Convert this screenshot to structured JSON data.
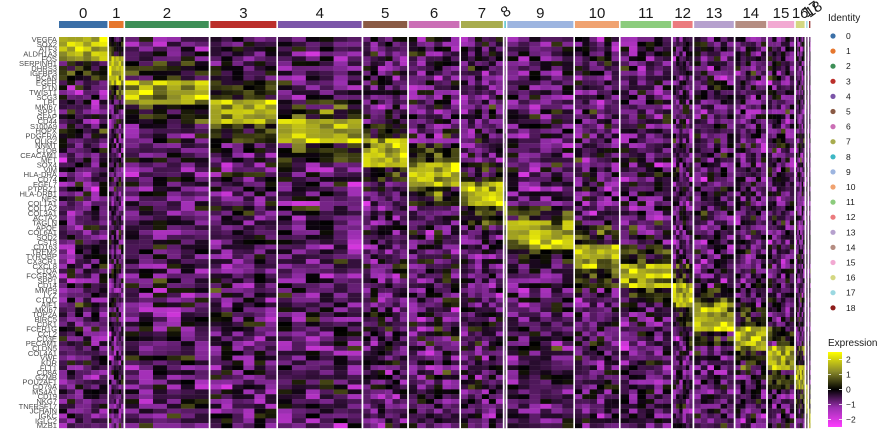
{
  "chart_data": {
    "type": "heatmap",
    "title": "",
    "clusters": [
      {
        "id": "0",
        "color": "#3B6FA7",
        "cells": 110
      },
      {
        "id": "1",
        "color": "#E6772E",
        "cells": 33
      },
      {
        "id": "2",
        "color": "#3E8F57",
        "cells": 190
      },
      {
        "id": "3",
        "color": "#BB2F2A",
        "cells": 150
      },
      {
        "id": "4",
        "color": "#7B55A8",
        "cells": 190
      },
      {
        "id": "5",
        "color": "#8A5A44",
        "cells": 100
      },
      {
        "id": "6",
        "color": "#CB6FB5",
        "cells": 115
      },
      {
        "id": "7",
        "color": "#A8AC4E",
        "cells": 95
      },
      {
        "id": "8",
        "color": "#3EB7C4",
        "cells": 3
      },
      {
        "id": "9",
        "color": "#9DB5E0",
        "cells": 150
      },
      {
        "id": "10",
        "color": "#F0A270",
        "cells": 100
      },
      {
        "id": "11",
        "color": "#8CCC7D",
        "cells": 115
      },
      {
        "id": "12",
        "color": "#EB7B7E",
        "cells": 45
      },
      {
        "id": "13",
        "color": "#B6A1CE",
        "cells": 90
      },
      {
        "id": "14",
        "color": "#B58D82",
        "cells": 70
      },
      {
        "id": "15",
        "color": "#F2A9D2",
        "cells": 60
      },
      {
        "id": "16",
        "color": "#D4D782",
        "cells": 20
      },
      {
        "id": "17",
        "color": "#9BD8E1",
        "cells": 3
      },
      {
        "id": "18",
        "color": "#8E1D1B",
        "cells": 2
      }
    ],
    "genes": [
      "VEGFA",
      "SOX2",
      "ATF3",
      "ALDH1A3",
      "FOS",
      "SERPINH1",
      "DHRS3",
      "IGFBP3",
      "BCAN",
      "EGFR",
      "PTN",
      "TWIST1",
      "SCG3",
      "LPL",
      "MKI67",
      "SPP1",
      "GFAP",
      "CD44",
      "S100A9",
      "HOPX",
      "PDGFRA",
      "OLIG2",
      "NNMT",
      "C1QB",
      "CEACAM1",
      "MET",
      "SOX4",
      "VIM",
      "HLA-DRA",
      "CD74",
      "EGFL7",
      "PTPRZ1",
      "HLA-DRB1",
      "NES",
      "COL1A1",
      "COL1A2",
      "COL3A1",
      "ACTA2",
      "TAGLN",
      "APOE",
      "COL6A1",
      "SOD2",
      "CST3",
      "CD163",
      "TREM2",
      "TYROBP",
      "CX3CR1",
      "CXCL8",
      "C1QA",
      "FCGR3A",
      "SPP1",
      "CD14",
      "MMP9",
      "LYZ",
      "C1QC",
      "AIF1",
      "MKI67",
      "TOP2A",
      "BIRC5",
      "CDK1",
      "FCER1G",
      "CCL2",
      "CD3E",
      "PECAM1",
      "CLDN5",
      "COL4A1",
      "VWF",
      "KDR",
      "FLT1",
      "CD8A",
      "GZMB",
      "POU2AF1",
      "CD79A",
      "MS4A1",
      "CD19",
      "NKG7",
      "TNFRSF17",
      "JCHAIN",
      "IGKC",
      "IGLC2",
      "MZB1"
    ],
    "color_scale": {
      "title": "Expression",
      "ticks": [
        2,
        1,
        0,
        -1,
        -2
      ],
      "range": [
        -2.5,
        2.5
      ],
      "stops": [
        {
          "value": -2.5,
          "color": "#FF3DFF"
        },
        {
          "value": -1.2,
          "color": "#9A2FB0"
        },
        {
          "value": 0,
          "color": "#000000"
        },
        {
          "value": 1.2,
          "color": "#8A8A2A"
        },
        {
          "value": 2.5,
          "color": "#FFFF00"
        }
      ]
    },
    "identity_legend": {
      "title": "Identity"
    },
    "xlabel": "",
    "ylabel": ""
  }
}
